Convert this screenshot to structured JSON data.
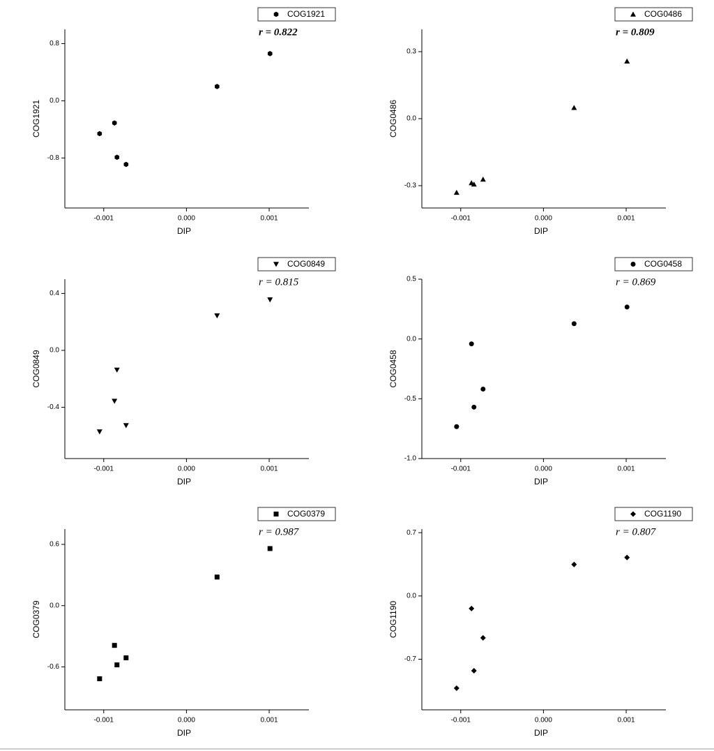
{
  "chart_data": [
    {
      "type": "scatter",
      "xlabel": "DIP",
      "ylabel": "COG1921",
      "annotation": "r = 0.822",
      "annotation_bold": true,
      "x": [
        -0.00105,
        -0.00087,
        -0.00084,
        -0.00073,
        0.00037,
        0.00101
      ],
      "series": [
        {
          "name": "COG1921",
          "color": "#000000",
          "marker": "hexagon",
          "values": [
            -0.46,
            -0.31,
            -0.79,
            -0.89,
            0.2,
            0.66
          ]
        }
      ],
      "xlim": [
        -0.00147,
        0.00148
      ],
      "xticks": [
        -0.001,
        {
          "value": 0,
          "label": "0.000"
        },
        0.001
      ],
      "ylim": [
        -1.5,
        1.0
      ],
      "yticks": [
        -0.8,
        {
          "value": 0,
          "label": "0.0"
        },
        0.8
      ],
      "legend": "top-right"
    },
    {
      "type": "scatter",
      "xlabel": "DIP",
      "ylabel": "COG0486",
      "annotation": "r = 0.809",
      "annotation_bold": true,
      "x": [
        -0.00105,
        -0.00087,
        -0.00084,
        -0.00073,
        0.00037,
        0.00101
      ],
      "series": [
        {
          "name": "COG0486",
          "color": "#000000",
          "marker": "triangle",
          "values": [
            -0.331,
            -0.288,
            -0.294,
            -0.272,
            0.049,
            0.257
          ]
        }
      ],
      "xlim": [
        -0.00147,
        0.00148
      ],
      "xticks": [
        -0.001,
        {
          "value": 0,
          "label": "0.000"
        },
        0.001
      ],
      "ylim": [
        -0.4,
        0.4
      ],
      "yticks": [
        -0.3,
        {
          "value": 0,
          "label": "0.0"
        },
        0.3
      ],
      "legend": "top-right"
    },
    {
      "type": "scatter",
      "xlabel": "DIP",
      "ylabel": "COG0849",
      "annotation": "r = 0.815",
      "annotation_bold": false,
      "x": [
        -0.00105,
        -0.00087,
        -0.00084,
        -0.00073,
        0.00037,
        0.00101
      ],
      "series": [
        {
          "name": "COG0849",
          "color": "#000000",
          "marker": "triangle-down",
          "values": [
            -0.571,
            -0.356,
            -0.137,
            -0.527,
            0.244,
            0.356
          ]
        }
      ],
      "xlim": [
        -0.00147,
        0.00148
      ],
      "xticks": [
        -0.001,
        {
          "value": 0,
          "label": "0.000"
        },
        0.001
      ],
      "ylim": [
        -0.76,
        0.5
      ],
      "yticks": [
        -0.4,
        {
          "value": 0,
          "label": "0.0"
        },
        0.4
      ],
      "legend": "top-right"
    },
    {
      "type": "scatter",
      "xlabel": "DIP",
      "ylabel": "COG0458",
      "annotation": "r = 0.869",
      "annotation_bold": false,
      "x": [
        -0.00105,
        -0.00087,
        -0.00084,
        -0.00073,
        0.00037,
        0.00101
      ],
      "series": [
        {
          "name": "COG0458",
          "color": "#000000",
          "marker": "circle",
          "values": [
            -0.733,
            -0.041,
            -0.57,
            -0.419,
            0.128,
            0.267
          ]
        }
      ],
      "xlim": [
        -0.00147,
        0.00148
      ],
      "xticks": [
        -0.001,
        {
          "value": 0,
          "label": "0.000"
        },
        0.001
      ],
      "ylim": [
        -1.0,
        0.5
      ],
      "yticks": [
        {
          "value": -1,
          "label": "-1.0"
        },
        -0.5,
        {
          "value": 0,
          "label": "0.0"
        },
        0.5
      ],
      "legend": "top-right"
    },
    {
      "type": "scatter",
      "xlabel": "DIP",
      "ylabel": "COG0379",
      "annotation": "r = 0.987",
      "annotation_bold": false,
      "x": [
        -0.00105,
        -0.00087,
        -0.00084,
        -0.00073,
        0.00037,
        0.00101
      ],
      "series": [
        {
          "name": "COG0379",
          "color": "#000000",
          "marker": "square",
          "values": [
            -0.716,
            -0.389,
            -0.58,
            -0.511,
            0.28,
            0.559
          ]
        }
      ],
      "xlim": [
        -0.00147,
        0.00148
      ],
      "xticks": [
        -0.001,
        {
          "value": 0,
          "label": "0.000"
        },
        0.001
      ],
      "ylim": [
        -1.02,
        0.75
      ],
      "yticks": [
        -0.6,
        {
          "value": 0,
          "label": "0.0"
        },
        0.6
      ],
      "legend": "top-right"
    },
    {
      "type": "scatter",
      "xlabel": "DIP",
      "ylabel": "COG1190",
      "annotation": "r = 0.807",
      "annotation_bold": false,
      "x": [
        -0.00105,
        -0.00087,
        -0.00084,
        -0.00073,
        0.00037,
        0.00101
      ],
      "series": [
        {
          "name": "COG1190",
          "color": "#000000",
          "marker": "diamond",
          "values": [
            -1.021,
            -0.139,
            -0.828,
            -0.464,
            0.348,
            0.425
          ]
        }
      ],
      "xlim": [
        -0.00147,
        0.00148
      ],
      "xticks": [
        -0.001,
        {
          "value": 0,
          "label": "0.000"
        },
        0.001
      ],
      "ylim": [
        -1.26,
        0.74
      ],
      "yticks": [
        -0.7,
        {
          "value": 0,
          "label": "0.0"
        },
        0.7
      ],
      "legend": "top-right"
    }
  ]
}
